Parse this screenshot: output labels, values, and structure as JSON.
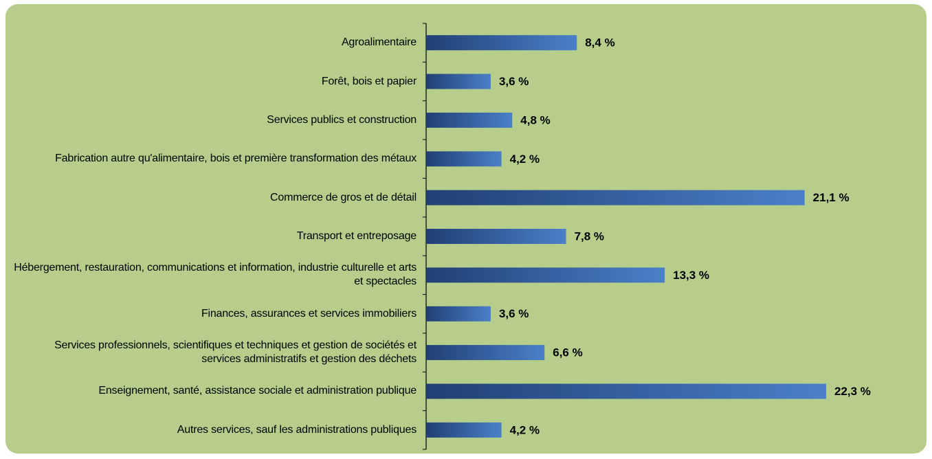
{
  "chart_data": {
    "type": "bar",
    "orientation": "horizontal",
    "categories": [
      "Agroalimentaire",
      "Forêt, bois et papier",
      "Services publics et construction",
      "Fabrication autre qu'alimentaire, bois et première transformation des métaux",
      "Commerce de gros et de détail",
      "Transport et entreposage",
      "Hébergement, restauration, communications et information, industrie culturelle et arts et spectacles",
      "Finances, assurances et services immobiliers",
      "Services professionnels, scientifiques et techniques et gestion de sociétés et services administratifs et gestion des déchets",
      "Enseignement, santé, assistance sociale et administration publique",
      "Autres services, sauf les administrations publiques"
    ],
    "values": [
      8.4,
      3.6,
      4.8,
      4.2,
      21.1,
      7.8,
      13.3,
      3.6,
      6.6,
      22.3,
      4.2
    ],
    "value_labels": [
      "8,4 %",
      "3,6 %",
      "4,8 %",
      "4,2 %",
      "21,1 %",
      "7,8 %",
      "13,3 %",
      "3,6 %",
      "6,6 %",
      "22,3 %",
      "4,2 %"
    ],
    "color": "#4a80c8"
  }
}
